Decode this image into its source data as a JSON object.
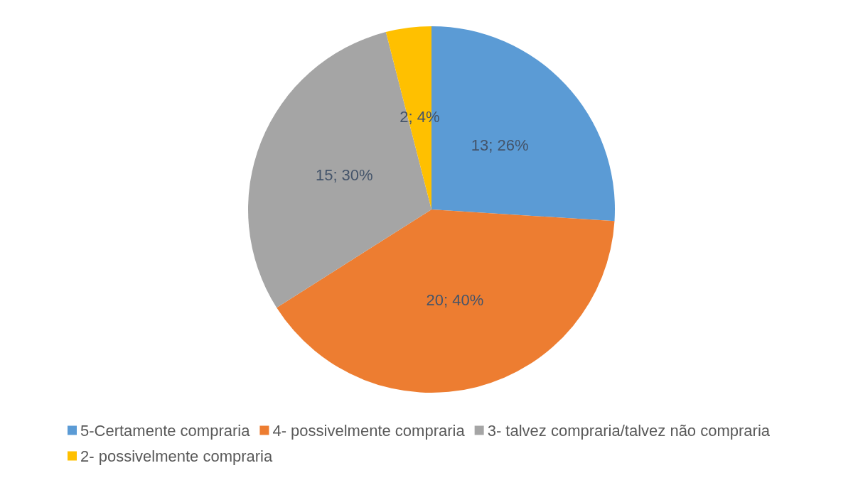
{
  "chart_data": {
    "type": "pie",
    "categories": [
      "5-Certamente compraria",
      "4- possivelmente compraria",
      "3- talvez compraria/talvez não compraria",
      "2- possivelmente compraria"
    ],
    "values": [
      13,
      20,
      15,
      2
    ],
    "colors": [
      "#5b9bd5",
      "#ed7d31",
      "#a5a5a5",
      "#ffc000"
    ],
    "value_labels": [
      "13; 26%",
      "20; 40%",
      "15; 30%",
      "2; 4%"
    ],
    "legend": "bottom"
  }
}
